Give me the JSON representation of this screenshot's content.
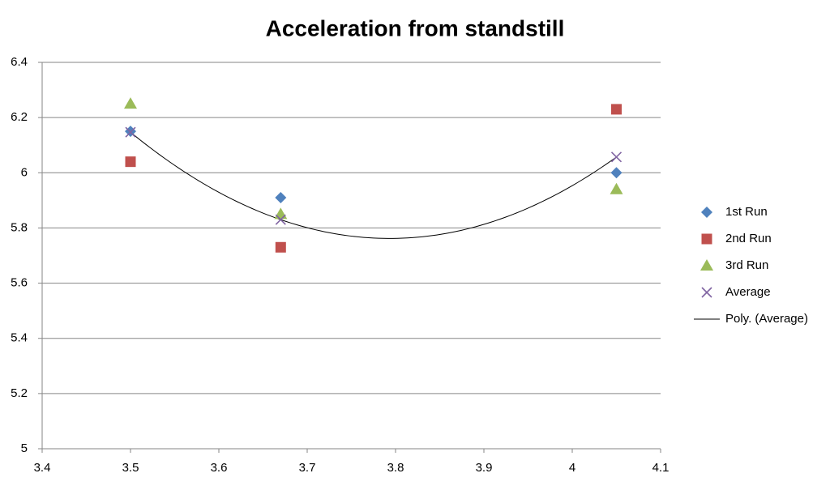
{
  "chart_data": {
    "type": "scatter",
    "title": "Acceleration from standstill",
    "x": [
      3.5,
      3.67,
      4.05
    ],
    "series": [
      {
        "name": "1st Run",
        "color": "#4f81bd",
        "marker": "diamond",
        "values": [
          6.15,
          5.91,
          6.0
        ]
      },
      {
        "name": "2nd Run",
        "color": "#c0504d",
        "marker": "square",
        "values": [
          6.04,
          5.73,
          6.23
        ]
      },
      {
        "name": "3rd Run",
        "color": "#9bbb59",
        "marker": "triangle",
        "values": [
          6.25,
          5.85,
          5.94
        ]
      },
      {
        "name": "Average",
        "color": "#8064a2",
        "marker": "cross",
        "values": [
          6.147,
          5.83,
          6.057
        ],
        "trendline": {
          "name": "Poly. (Average)",
          "order": 2,
          "color": "#000000"
        }
      }
    ],
    "xlim": [
      3.4,
      4.1
    ],
    "xticks": [
      3.4,
      3.5,
      3.6,
      3.7,
      3.8,
      3.9,
      4,
      4.1
    ],
    "ylim": [
      5,
      6.4
    ],
    "yticks": [
      5,
      5.2,
      5.4,
      5.6,
      5.8,
      6,
      6.2,
      6.4
    ],
    "grid": true,
    "legend": "right"
  }
}
